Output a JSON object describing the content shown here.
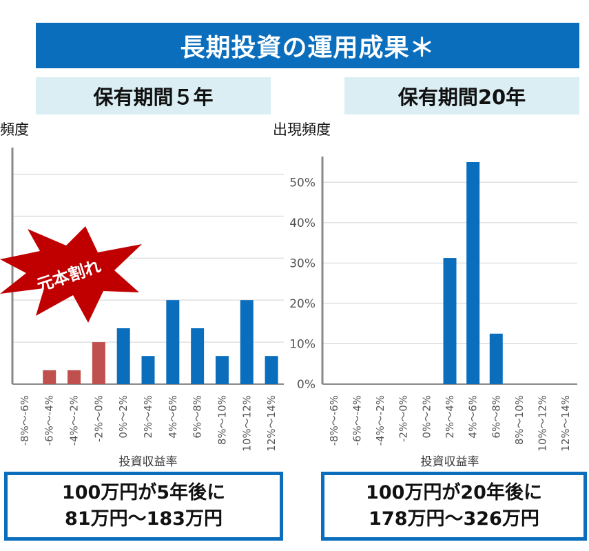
{
  "header": {
    "title": "長期投資の運用成果＊"
  },
  "colors": {
    "banner": "#0a6ebd",
    "subtitle_bg": "#daeef3",
    "bar_blue": "#0a6ebd",
    "bar_red": "#c0504d",
    "burst_red": "#c00000"
  },
  "chart_data": [
    {
      "type": "bar",
      "title": "保有期間５年",
      "ylabel": "頻度",
      "xlabel": "投資収益率",
      "categories": [
        "-8%～-6%",
        "-6%～-4%",
        "-4%～-2%",
        "-2%～0%",
        "0%～2%",
        "2%～4%",
        "4%～6%",
        "6%～8%",
        "8%～10%",
        "10%～12%",
        "12%～14%"
      ],
      "values": [
        0,
        3.3,
        3.3,
        10,
        13.3,
        6.7,
        20,
        13.3,
        6.7,
        20,
        6.7
      ],
      "loss_categories": [
        "-6%～-4%",
        "-4%～-2%",
        "-2%～0%"
      ],
      "ylim": [
        0,
        55
      ],
      "annotation": "元本割れ",
      "summary_line1": "100万円が5年後に",
      "summary_line2": "81万円～183万円"
    },
    {
      "type": "bar",
      "title": "保有期間20年",
      "ylabel": "出現頻度",
      "xlabel": "投資収益率",
      "categories": [
        "-8%～-6%",
        "-6%～-4%",
        "-4%～-2%",
        "-2%～0%",
        "0%～2%",
        "2%～4%",
        "4%～6%",
        "6%～8%",
        "8%～10%",
        "10%～12%",
        "12%～14%"
      ],
      "values": [
        0,
        0,
        0,
        0,
        0,
        31.25,
        55,
        12.5,
        0,
        0,
        0
      ],
      "ylim": [
        0,
        55
      ],
      "yticks": [
        "0%",
        "10%",
        "20%",
        "30%",
        "40%",
        "50%"
      ],
      "summary_line1": "100万円が20年後に",
      "summary_line2": "178万円～326万円"
    }
  ]
}
